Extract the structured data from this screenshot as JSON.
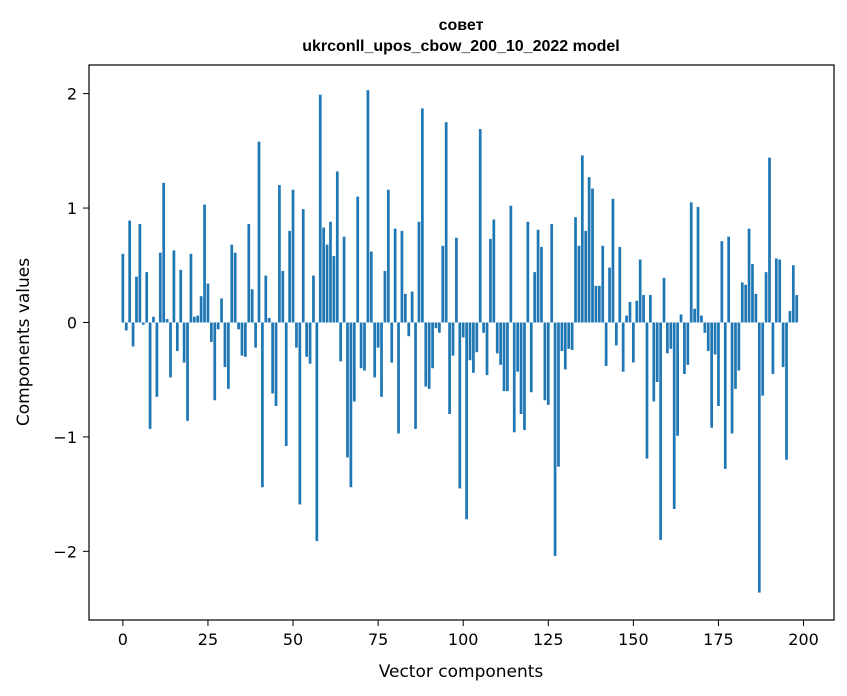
{
  "chart_data": {
    "type": "bar",
    "title": "совет",
    "subtitle": "ukrconll_upos_cbow_200_10_2022 model",
    "xlabel": "Vector components",
    "ylabel": "Components values",
    "xlim": [
      -9.95,
      208.95
    ],
    "ylim": [
      -2.6,
      2.25
    ],
    "xticks": [
      0,
      25,
      50,
      75,
      100,
      125,
      150,
      175,
      200
    ],
    "xtick_labels": [
      "0",
      "25",
      "50",
      "75",
      "100",
      "125",
      "150",
      "175",
      "200"
    ],
    "yticks": [
      -2,
      -1,
      0,
      1,
      2
    ],
    "ytick_labels": [
      "−2",
      "−1",
      "0",
      "1",
      "2"
    ],
    "grid": false,
    "bar_color": "#1f77b4",
    "values": [
      0.6,
      -0.07,
      0.89,
      -0.21,
      0.4,
      0.86,
      -0.02,
      0.44,
      -0.93,
      0.05,
      -0.65,
      0.61,
      1.22,
      0.03,
      -0.48,
      0.63,
      -0.25,
      0.46,
      -0.35,
      -0.86,
      0.6,
      0.05,
      0.06,
      0.23,
      1.03,
      0.34,
      -0.17,
      -0.68,
      -0.06,
      0.21,
      -0.39,
      -0.58,
      0.68,
      0.61,
      -0.06,
      -0.29,
      -0.3,
      0.86,
      0.29,
      -0.22,
      1.58,
      -1.44,
      0.41,
      0.04,
      -0.62,
      -0.73,
      1.2,
      0.45,
      -1.08,
      0.8,
      1.16,
      -0.22,
      -1.59,
      0.99,
      -0.3,
      -0.36,
      0.41,
      -1.91,
      1.99,
      0.83,
      0.68,
      0.88,
      0.58,
      1.32,
      -0.34,
      0.75,
      -1.18,
      -1.44,
      -0.69,
      1.1,
      -0.4,
      -0.42,
      2.03,
      0.62,
      -0.48,
      -0.22,
      -0.65,
      0.45,
      1.16,
      -0.35,
      0.82,
      -0.97,
      0.8,
      0.25,
      -0.12,
      0.27,
      -0.93,
      0.88,
      1.87,
      -0.56,
      -0.58,
      -0.4,
      -0.05,
      -0.09,
      0.67,
      1.75,
      -0.8,
      -0.29,
      0.74,
      -1.45,
      -0.13,
      -1.72,
      -0.33,
      -0.44,
      -0.26,
      1.69,
      -0.09,
      -0.46,
      0.73,
      0.9,
      -0.27,
      -0.37,
      -0.6,
      -0.6,
      1.02,
      -0.96,
      -0.43,
      -0.8,
      -0.94,
      0.88,
      -0.61,
      0.44,
      0.81,
      0.66,
      -0.68,
      -0.72,
      0.86,
      -2.04,
      -1.26,
      -0.25,
      -0.41,
      -0.23,
      -0.24,
      0.92,
      0.67,
      1.46,
      0.8,
      1.27,
      1.17,
      0.32,
      0.32,
      0.67,
      -0.38,
      0.48,
      1.08,
      -0.2,
      0.66,
      -0.43,
      0.06,
      0.18,
      -0.35,
      0.19,
      0.55,
      0.24,
      -1.19,
      0.24,
      -0.69,
      -0.52,
      -1.9,
      0.39,
      -0.27,
      -0.23,
      -1.63,
      -0.99,
      0.07,
      -0.45,
      -0.37,
      1.05,
      0.12,
      1.01,
      0.06,
      -0.09,
      -0.25,
      -0.92,
      -0.28,
      -0.73,
      0.71,
      -1.28,
      0.75,
      -0.97,
      -0.58,
      -0.42,
      0.35,
      0.33,
      0.82,
      0.51,
      0.25,
      -2.36,
      -0.64,
      0.44,
      1.44,
      -0.45,
      0.56,
      0.55,
      -0.39,
      -1.2,
      0.1,
      0.5,
      0.24
    ]
  }
}
